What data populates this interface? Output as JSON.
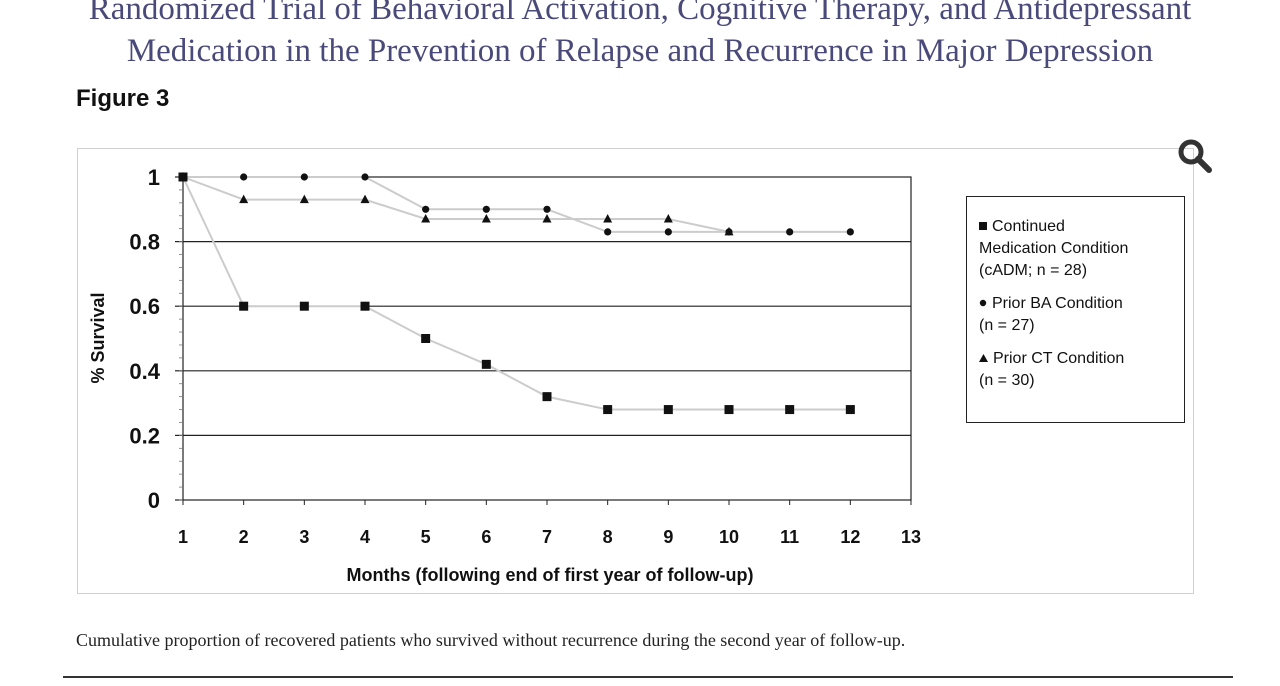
{
  "header": {
    "title_line1": "Randomized Trial of Behavioral Activation, Cognitive Therapy, and Antidepressant",
    "title_line2": "Medication in the Prevention of Relapse and Recurrence in Major Depression",
    "figure_label": "Figure 3"
  },
  "caption": "Cumulative proportion of recovered patients who survived without recurrence during the second year of follow-up.",
  "icons": {
    "zoom": "magnifier-icon"
  },
  "chart_data": {
    "type": "line",
    "title": "",
    "xlabel": "Months (following end of first year of follow-up)",
    "ylabel": "% Survival",
    "xlim": [
      1,
      13
    ],
    "ylim": [
      0,
      1
    ],
    "x_ticks": [
      "1",
      "2",
      "3",
      "4",
      "5",
      "6",
      "7",
      "8",
      "9",
      "10",
      "11",
      "12",
      "13"
    ],
    "y_ticks": [
      "0",
      "0.2",
      "0.4",
      "0.6",
      "0.8",
      "1"
    ],
    "y_tick_values": [
      0,
      0.2,
      0.4,
      0.6,
      0.8,
      1
    ],
    "grid": "horizontal",
    "legend_position": "right",
    "line_color": "#cccccc",
    "marker_color": "#111111",
    "x": [
      1,
      2,
      3,
      4,
      5,
      6,
      7,
      8,
      9,
      10,
      11,
      12
    ],
    "series": [
      {
        "name": "Continued Medication Condition (cADM; n = 28)",
        "marker": "square",
        "values": [
          1,
          0.6,
          0.6,
          0.6,
          0.5,
          0.42,
          0.32,
          0.28,
          0.28,
          0.28,
          0.28,
          0.28
        ]
      },
      {
        "name": "Prior BA Condition (n = 27)",
        "marker": "circle",
        "values": [
          1,
          1,
          1,
          1,
          0.9,
          0.9,
          0.9,
          0.83,
          0.83,
          0.83,
          0.83,
          0.83
        ]
      },
      {
        "name": "Prior CT Condition (n = 30)",
        "marker": "triangle",
        "values": [
          1,
          0.93,
          0.93,
          0.93,
          0.87,
          0.87,
          0.87,
          0.87,
          0.87,
          0.83,
          null,
          null
        ]
      }
    ],
    "legend": [
      {
        "marker": "square",
        "line1": "Continued",
        "line2": "Medication Condition",
        "line3": "(cADM; n = 28)"
      },
      {
        "marker": "circle",
        "line1": "Prior BA Condition",
        "line2": "(n = 27)"
      },
      {
        "marker": "triangle",
        "line1": "Prior CT Condition",
        "line2": "(n = 30)"
      }
    ]
  }
}
